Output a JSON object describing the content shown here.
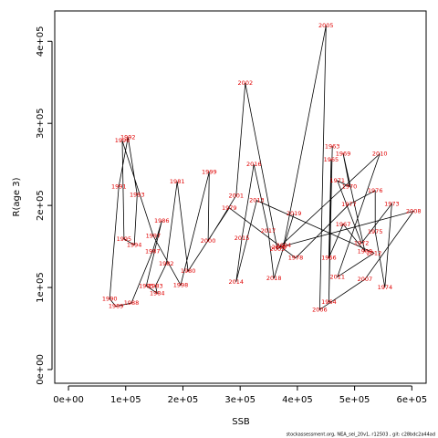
{
  "chart_data": {
    "type": "line",
    "x_label": "SSB",
    "y_label": "R(age 3)",
    "footer": "stockassessment.org, NEA_sei_20v1, r12503 , git: c28bdc2a44ad",
    "line_color": "#000000",
    "label_color": "#e00000",
    "xlim": [
      -24000,
      625000
    ],
    "ylim": [
      -16700,
      437000
    ],
    "xticks": [
      {
        "value": 0,
        "label": "0e+00"
      },
      {
        "value": 100000,
        "label": "1e+05"
      },
      {
        "value": 200000,
        "label": "2e+05"
      },
      {
        "value": 300000,
        "label": "3e+05"
      },
      {
        "value": 400000,
        "label": "4e+05"
      },
      {
        "value": 500000,
        "label": "5e+05"
      },
      {
        "value": 600000,
        "label": "6e+05"
      }
    ],
    "yticks": [
      {
        "value": 0,
        "label": "0e+00"
      },
      {
        "value": 100000,
        "label": "1e+05"
      },
      {
        "value": 200000,
        "label": "2e+05"
      },
      {
        "value": 300000,
        "label": "3e+05"
      },
      {
        "value": 400000,
        "label": "4e+05"
      }
    ],
    "labels": [
      "1963",
      "1964",
      "1965",
      "1966",
      "1967",
      "1968",
      "1969",
      "1970",
      "1971",
      "1972",
      "1973",
      "1974",
      "1975",
      "1976",
      "1977",
      "1978",
      "1979",
      "1980",
      "1981",
      "1982",
      "1983",
      "1984",
      "1985",
      "1986",
      "1987",
      "1988",
      "1989",
      "1990",
      "1991",
      "1992",
      "1993",
      "1994",
      "1995",
      "1996",
      "1997",
      "1998",
      "1999",
      "2000",
      "2001",
      "2002",
      "2003",
      "2004",
      "2005",
      "2006",
      "2007",
      "2008",
      "2009",
      "2010",
      "2011",
      "2012",
      "2013",
      "2014",
      "2015",
      "2016",
      "2017",
      "2018",
      "2019"
    ],
    "x": [
      461000,
      455000,
      459000,
      455000,
      480000,
      518000,
      480000,
      491000,
      470000,
      512000,
      565000,
      553000,
      536000,
      536000,
      490000,
      397000,
      281000,
      209000,
      190000,
      171000,
      152000,
      155000,
      136000,
      163000,
      147000,
      110000,
      83000,
      72000,
      88000,
      104000,
      120000,
      115000,
      97000,
      94000,
      148000,
      196000,
      246000,
      244000,
      293000,
      309000,
      365000,
      376000,
      450000,
      439000,
      518000,
      603000,
      368000,
      544000,
      470000,
      534000,
      329000,
      293000,
      303000,
      324000,
      349000,
      359000,
      394000
    ],
    "values": [
      272000,
      82000,
      256000,
      136000,
      177000,
      144000,
      263000,
      223000,
      230000,
      154000,
      202000,
      100000,
      168000,
      218000,
      201000,
      136000,
      197000,
      120000,
      229000,
      129000,
      102000,
      93000,
      102000,
      181000,
      144000,
      81000,
      77000,
      86000,
      223000,
      283000,
      213000,
      152000,
      159000,
      279000,
      163000,
      103000,
      241000,
      157000,
      212000,
      349000,
      147000,
      151000,
      419000,
      73000,
      110000,
      193000,
      149000,
      263000,
      113000,
      142000,
      206000,
      107000,
      160000,
      250000,
      169000,
      111000,
      190000
    ]
  }
}
